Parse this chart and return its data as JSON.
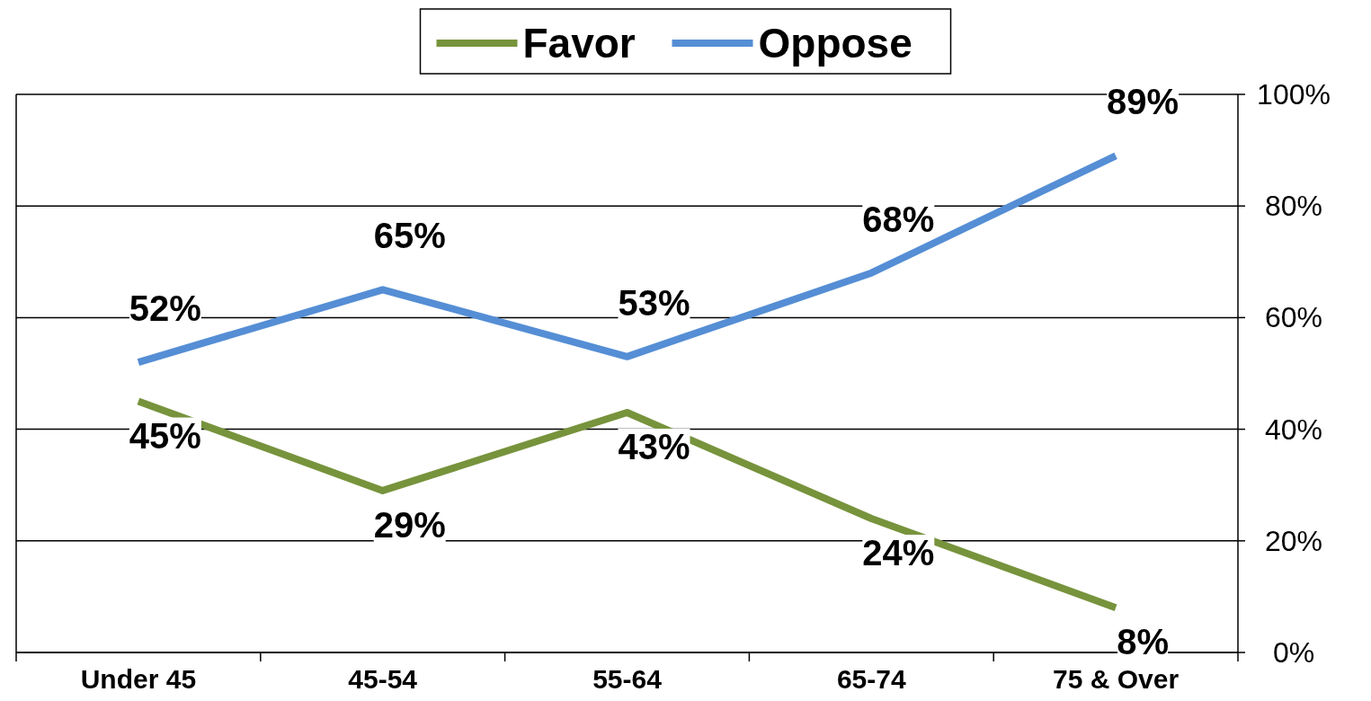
{
  "chart_data": {
    "type": "line",
    "categories": [
      "Under 45",
      "45-54",
      "55-64",
      "65-74",
      "75 & Over"
    ],
    "series": [
      {
        "name": "Favor",
        "color": "#77933c",
        "values": [
          45,
          29,
          43,
          24,
          8
        ],
        "value_labels": [
          "45%",
          "29%",
          "43%",
          "24%",
          "8%"
        ]
      },
      {
        "name": "Oppose",
        "color": "#558ed5",
        "values": [
          52,
          65,
          53,
          68,
          89
        ],
        "value_labels": [
          "52%",
          "65%",
          "53%",
          "68%",
          "89%"
        ]
      }
    ],
    "ylim": [
      0,
      100
    ],
    "yticks": [
      {
        "value": 0,
        "label": "0%"
      },
      {
        "value": 20,
        "label": "20%"
      },
      {
        "value": 40,
        "label": "40%"
      },
      {
        "value": 60,
        "label": "60%"
      },
      {
        "value": 80,
        "label": "80%"
      },
      {
        "value": 100,
        "label": "100%"
      }
    ],
    "grid": "y",
    "legend": "top",
    "marker": "none",
    "line_style": "solid"
  }
}
